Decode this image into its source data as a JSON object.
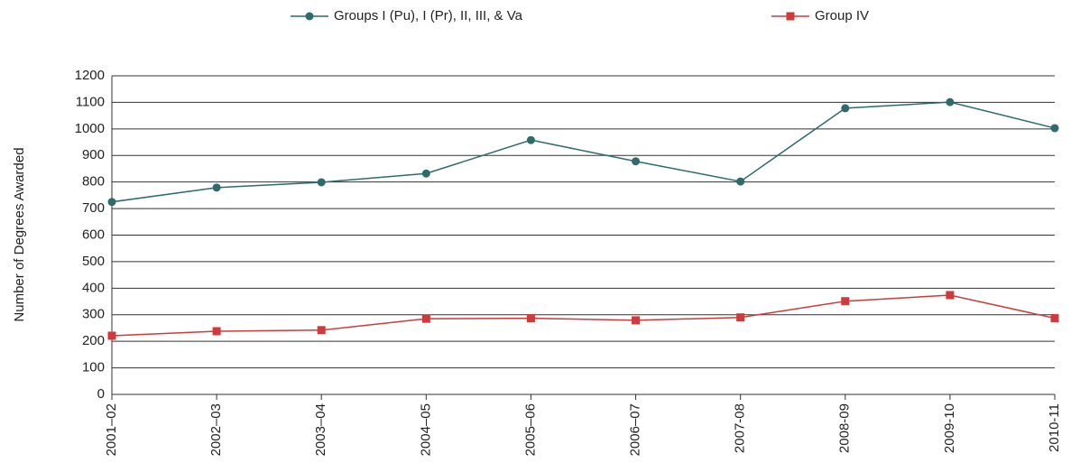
{
  "chart_data": {
    "type": "line",
    "y_label": "Number of Degrees Awarded",
    "categories": [
      "2001–02",
      "2002–03",
      "2003–04",
      "2004–05",
      "2005–06",
      "2006–07",
      "2007-08",
      "2008-09",
      "2009-10",
      "2010-11"
    ],
    "series": [
      {
        "name": "Groups I (Pu), I (Pr), II, III, & Va",
        "color": "#2e6b6b",
        "marker": "circle",
        "values": [
          725,
          779,
          799,
          832,
          958,
          878,
          802,
          1078,
          1101,
          1003
        ]
      },
      {
        "name": "Group IV",
        "color": "#d03a3a",
        "marker": "square",
        "values": [
          221,
          238,
          242,
          285,
          287,
          279,
          290,
          351,
          374,
          287
        ]
      }
    ],
    "ylim": [
      0,
      1200
    ],
    "yticks": [
      0,
      100,
      200,
      300,
      400,
      500,
      600,
      700,
      800,
      900,
      1000,
      1100,
      1200
    ],
    "grid": true,
    "legend": "top"
  }
}
